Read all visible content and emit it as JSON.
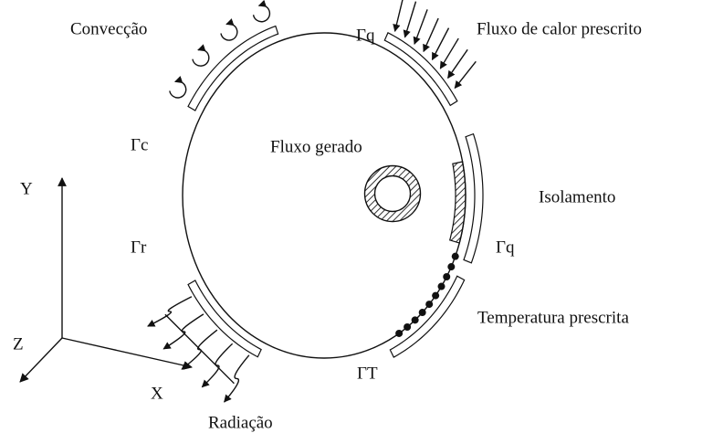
{
  "labels": {
    "convection": "Convecção",
    "gamma_q_top": "Γq",
    "heat_flux": "Fluxo de calor prescrito",
    "gamma_c": "Γc",
    "generated_flux": "Fluxo gerado",
    "axis_y": "Y",
    "insulation": "Isolamento",
    "gamma_r": "Γr",
    "gamma_q_right": "Γq",
    "prescribed_temperature": "Temperatura prescrita",
    "axis_z": "Z",
    "gamma_t": "ΓT",
    "axis_x": "X",
    "radiation": "Radiação"
  }
}
